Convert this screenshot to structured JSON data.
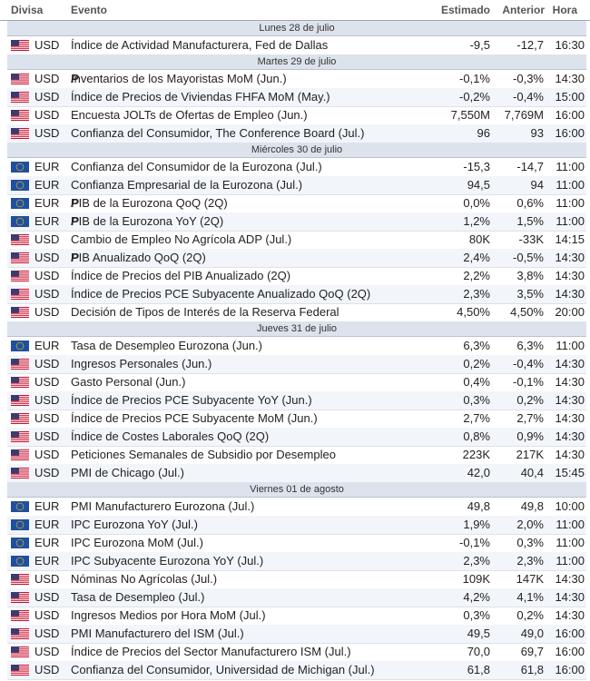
{
  "header": {
    "divisa": "Divisa",
    "evento": "Evento",
    "estimado": "Estimado",
    "anterior": "Anterior",
    "hora": "Hora"
  },
  "days": [
    {
      "label": "Lunes 28 de julio",
      "rows": [
        {
          "cur": "USD",
          "event": "Índice de Actividad Manufacturera, Fed de Dallas",
          "est": "-9,5",
          "ant": "-12,7",
          "hora": "16:30"
        }
      ]
    },
    {
      "label": "Martes 29 de julio",
      "rows": [
        {
          "cur": "USD",
          "event": "Inventarios de los Mayoristas MoM (Jun.)",
          "p": "P",
          "est": "-0,1%",
          "ant": "-0,3%",
          "hora": "14:30"
        },
        {
          "cur": "USD",
          "event": "Índice de Precios de Viviendas FHFA MoM (May.)",
          "est": "-0,2%",
          "ant": "-0,4%",
          "hora": "15:00"
        },
        {
          "cur": "USD",
          "event": "Encuesta JOLTs de Ofertas de Empleo (Jun.)",
          "est": "7,550M",
          "ant": "7,769M",
          "hora": "16:00"
        },
        {
          "cur": "USD",
          "event": "Confianza del Consumidor, The Conference Board (Jul.)",
          "est": "96",
          "ant": "93",
          "hora": "16:00"
        }
      ]
    },
    {
      "label": "Miércoles 30 de julio",
      "rows": [
        {
          "cur": "EUR",
          "event": "Confianza del Consumidor de la Eurozona (Jul.)",
          "est": "-15,3",
          "ant": "-14,7",
          "hora": "11:00"
        },
        {
          "cur": "EUR",
          "event": "Confianza Empresarial de la Eurozona (Jul.)",
          "est": "94,5",
          "ant": "94",
          "hora": "11:00"
        },
        {
          "cur": "EUR",
          "event": "PIB de la Eurozona QoQ (2Q)",
          "p": "P",
          "est": "0,0%",
          "ant": "0,6%",
          "hora": "11:00"
        },
        {
          "cur": "EUR",
          "event": "PIB de la Eurozona YoY (2Q)",
          "p": "P",
          "est": "1,2%",
          "ant": "1,5%",
          "hora": "11:00"
        },
        {
          "cur": "USD",
          "event": "Cambio de Empleo No Agrícola ADP (Jul.)",
          "est": "80K",
          "ant": "-33K",
          "hora": "14:15"
        },
        {
          "cur": "USD",
          "event": "PIB Anualizado QoQ (2Q)",
          "p": "P",
          "est": "2,4%",
          "ant": "-0,5%",
          "hora": "14:30"
        },
        {
          "cur": "USD",
          "event": "Índice de Precios del PIB Anualizado (2Q)",
          "est": "2,2%",
          "ant": "3,8%",
          "hora": "14:30"
        },
        {
          "cur": "USD",
          "event": "Índice de Precios PCE Subyacente Anualizado QoQ (2Q)",
          "est": "2,3%",
          "ant": "3,5%",
          "hora": "14:30"
        },
        {
          "cur": "USD",
          "event": "Decisión de Tipos de Interés de la Reserva Federal",
          "est": "4,50%",
          "ant": "4,50%",
          "hora": "20:00"
        }
      ]
    },
    {
      "label": "Jueves 31 de julio",
      "rows": [
        {
          "cur": "EUR",
          "event": "Tasa de Desempleo Eurozona (Jun.)",
          "est": "6,3%",
          "ant": "6,3%",
          "hora": "11:00"
        },
        {
          "cur": "USD",
          "event": "Ingresos Personales (Jun.)",
          "est": "0,2%",
          "ant": "-0,4%",
          "hora": "14:30"
        },
        {
          "cur": "USD",
          "event": "Gasto Personal (Jun.)",
          "est": "0,4%",
          "ant": "-0,1%",
          "hora": "14:30"
        },
        {
          "cur": "USD",
          "event": "Índice de Precios PCE Subyacente YoY (Jun.)",
          "est": "0,3%",
          "ant": "0,2%",
          "hora": "14:30"
        },
        {
          "cur": "USD",
          "event": "Índice de Precios PCE Subyacente MoM (Jun.)",
          "est": "2,7%",
          "ant": "2,7%",
          "hora": "14:30"
        },
        {
          "cur": "USD",
          "event": "Índice de Costes Laborales QoQ (2Q)",
          "est": "0,8%",
          "ant": "0,9%",
          "hora": "14:30"
        },
        {
          "cur": "USD",
          "event": "Peticiones Semanales de Subsidio por Desempleo",
          "est": "223K",
          "ant": "217K",
          "hora": "14:30"
        },
        {
          "cur": "USD",
          "event": "PMI de Chicago (Jul.)",
          "est": "42,0",
          "ant": "40,4",
          "hora": "15:45"
        }
      ]
    },
    {
      "label": "Viernes 01 de agosto",
      "rows": [
        {
          "cur": "EUR",
          "event": "PMI Manufacturero Eurozona (Jul.)",
          "est": "49,8",
          "ant": "49,8",
          "hora": "10:00"
        },
        {
          "cur": "EUR",
          "event": "IPC Eurozona YoY (Jul.)",
          "est": "1,9%",
          "ant": "2,0%",
          "hora": "11:00"
        },
        {
          "cur": "EUR",
          "event": "IPC Eurozona MoM (Jul.)",
          "est": "-0,1%",
          "ant": "0,3%",
          "hora": "11:00"
        },
        {
          "cur": "EUR",
          "event": "IPC Subyacente Eurozona YoY (Jul.)",
          "est": "2,3%",
          "ant": "2,3%",
          "hora": "11:00"
        },
        {
          "cur": "USD",
          "event": "Nóminas No Agrícolas (Jul.)",
          "est": "109K",
          "ant": "147K",
          "hora": "14:30"
        },
        {
          "cur": "USD",
          "event": "Tasa de Desempleo (Jul.)",
          "est": "4,2%",
          "ant": "4,1%",
          "hora": "14:30"
        },
        {
          "cur": "USD",
          "event": "Ingresos Medios por Hora MoM (Jul.)",
          "est": "0,3%",
          "ant": "0,2%",
          "hora": "14:30"
        },
        {
          "cur": "USD",
          "event": "PMI Manufacturero del ISM (Jul.)",
          "est": "49,5",
          "ant": "49,0",
          "hora": "16:00"
        },
        {
          "cur": "USD",
          "event": "Índice de Precios del Sector Manufacturero ISM (Jul.)",
          "est": "70,0",
          "ant": "69,7",
          "hora": "16:00"
        },
        {
          "cur": "USD",
          "event": "Confianza del Consumidor, Universidad de Michigan (Jul.)",
          "est": "61,8",
          "ant": "61,8",
          "hora": "16:00"
        }
      ]
    }
  ]
}
